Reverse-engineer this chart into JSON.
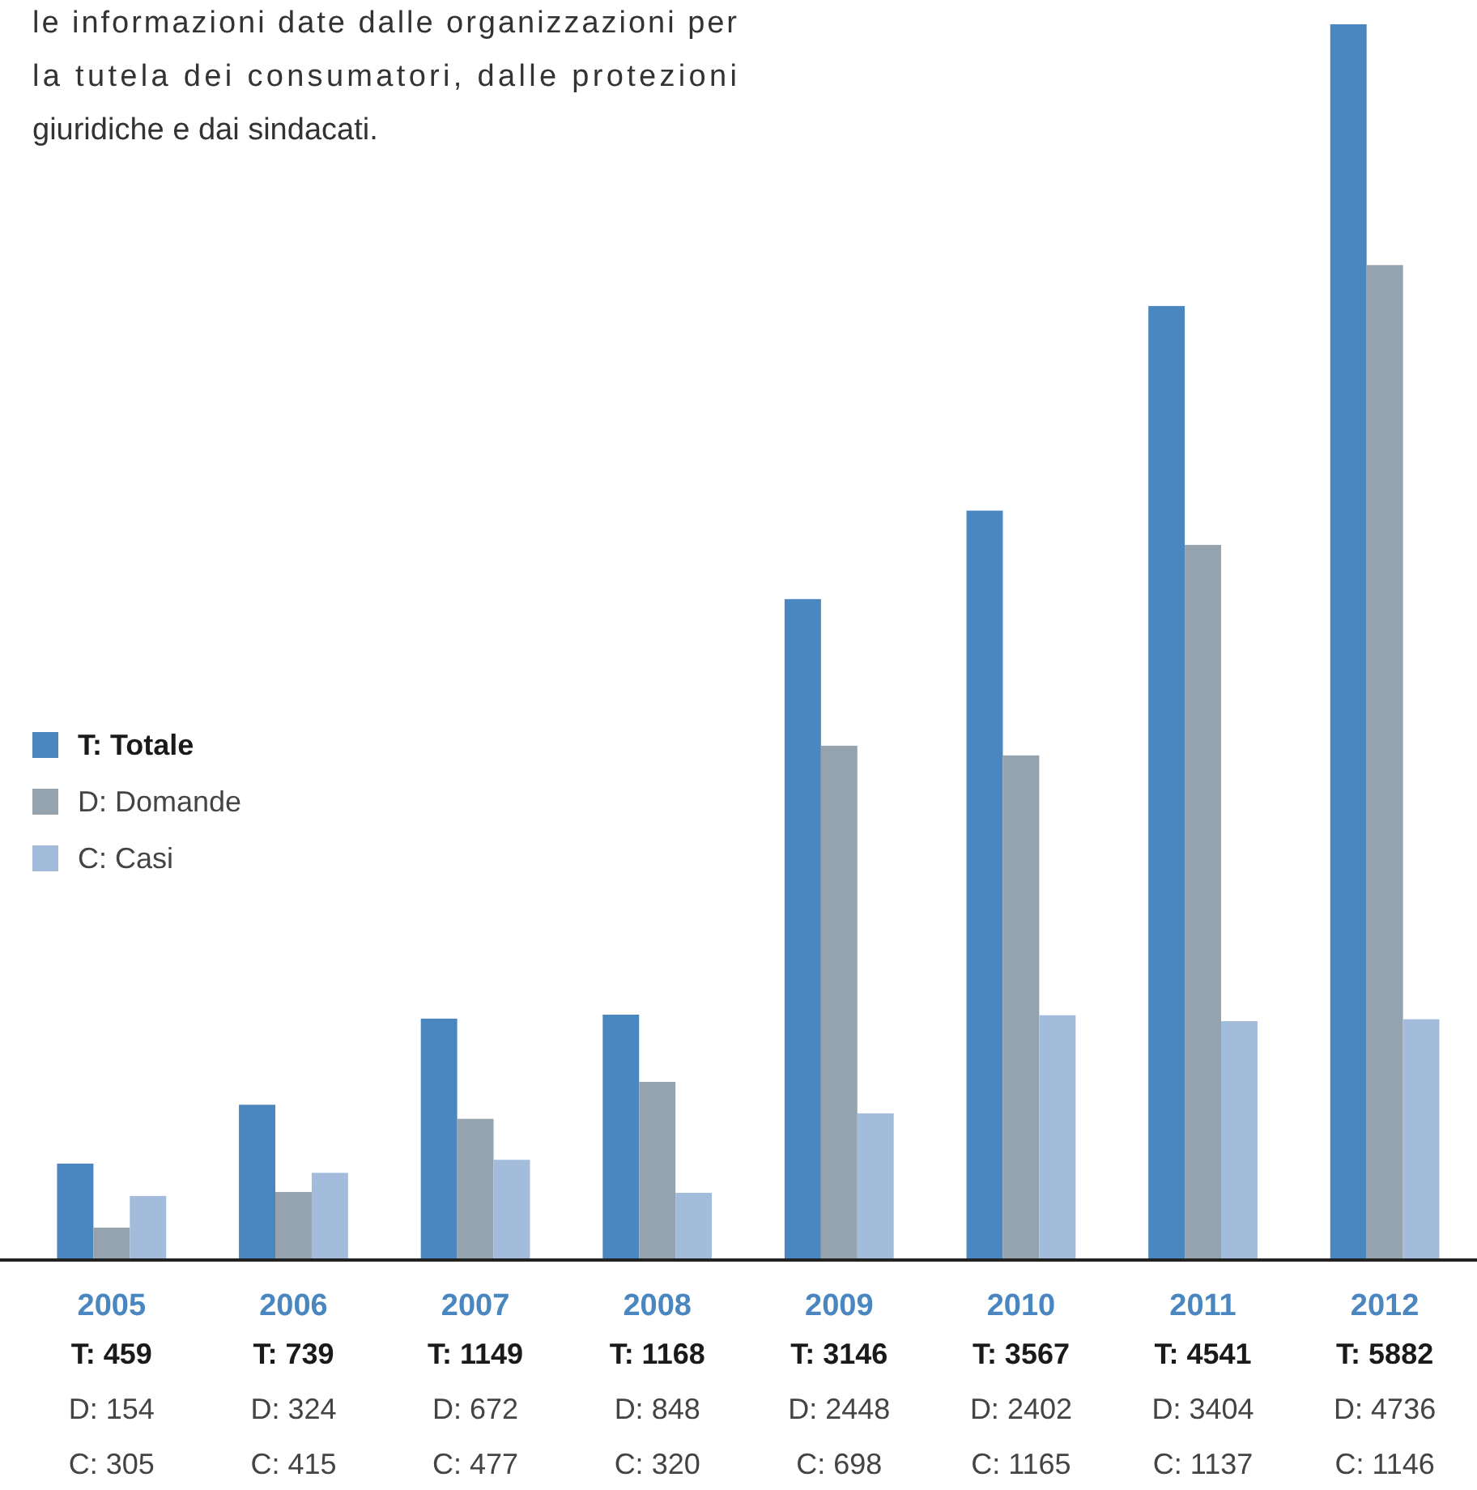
{
  "chart_data": {
    "type": "bar",
    "annotations": [
      "le informazioni date dalle organizzazioni per la tutela dei consumatori, dalle protezioni giuridiche e dai sindacati."
    ],
    "categories": [
      "2005",
      "2006",
      "2007",
      "2008",
      "2009",
      "2010",
      "2011",
      "2012"
    ],
    "series": [
      {
        "name": "T: Totale",
        "color": "#4a86c0",
        "values": [
          459,
          739,
          1149,
          1168,
          3146,
          3567,
          4541,
          5882
        ],
        "value_labels": [
          "T: 459",
          "T: 739",
          "T: 1149",
          "T: 1168",
          "T: 3146",
          "T: 3567",
          "T: 4541",
          "T: 5882"
        ]
      },
      {
        "name": "D: Domande",
        "color": "#95a3ae",
        "values": [
          154,
          324,
          672,
          848,
          2448,
          2402,
          3404,
          4736
        ],
        "value_labels": [
          "D: 154",
          "D: 324",
          "D: 672",
          "D: 848",
          "D: 2448",
          "D: 2402",
          "D: 3404",
          "D: 4736"
        ]
      },
      {
        "name": "C: Casi",
        "color": "#a4bcdc",
        "values": [
          305,
          415,
          477,
          320,
          698,
          1165,
          1137,
          1146
        ],
        "value_labels": [
          "C: 305",
          "C: 415",
          "C: 477",
          "C: 320",
          "C: 698",
          "C: 1165",
          "C: 1137",
          "C: 1146"
        ]
      }
    ],
    "legend": "left"
  }
}
